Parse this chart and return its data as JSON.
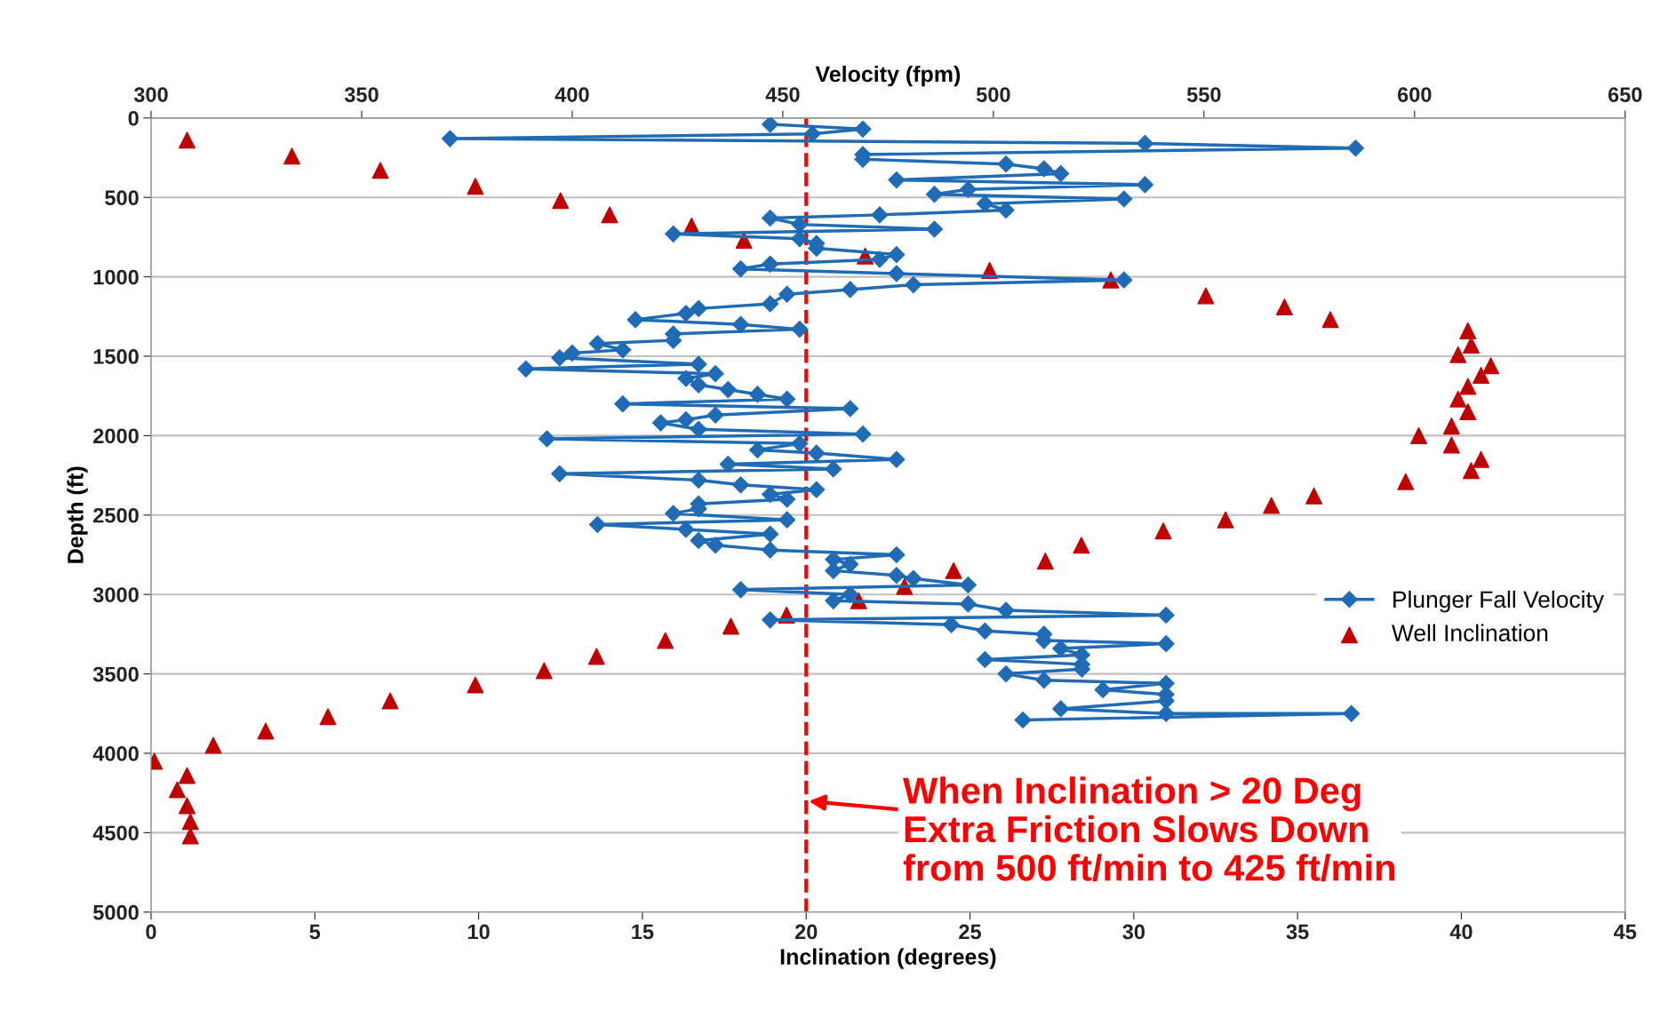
{
  "chart_data": {
    "type": "line",
    "xlabel": "Inclination (degrees)",
    "x2label": "Velocity (fpm)",
    "ylabel": "Depth (ft)",
    "xlim": [
      0,
      45
    ],
    "xticks": [
      0,
      5,
      10,
      15,
      20,
      25,
      30,
      35,
      40,
      45
    ],
    "x2lim": [
      300,
      650
    ],
    "x2ticks": [
      300,
      350,
      400,
      450,
      500,
      550,
      600,
      650
    ],
    "ylim": [
      5000,
      0
    ],
    "yticks": [
      0,
      500,
      1000,
      1500,
      2000,
      2500,
      3000,
      3500,
      4000,
      4500,
      5000
    ],
    "grid": "y",
    "legend": "right",
    "series": [
      {
        "name": "Plunger Fall Velocity",
        "axis": "x2",
        "marker": "diamond",
        "line_style": "solid",
        "color": "#1f6bb5",
        "x": [
          447,
          469,
          457,
          371,
          536,
          586,
          469,
          469,
          503,
          512,
          516,
          477,
          536,
          494,
          486,
          531,
          498,
          503,
          473,
          447,
          454,
          486,
          424,
          454,
          458,
          458,
          477,
          473,
          447,
          440,
          477,
          531,
          481,
          466,
          451,
          447,
          430,
          427,
          415,
          440,
          454,
          424,
          424,
          406,
          412,
          400,
          397,
          430,
          389,
          434,
          427,
          430,
          437,
          444,
          451,
          412,
          466,
          434,
          427,
          421,
          430,
          469,
          394,
          454,
          444,
          458,
          477,
          437,
          462,
          397,
          430,
          440,
          458,
          447,
          451,
          430,
          430,
          424,
          451,
          406,
          427,
          447,
          430,
          434,
          447,
          477,
          462,
          466,
          462,
          477,
          481,
          494,
          440,
          466,
          462,
          494,
          503,
          541,
          447,
          490,
          498,
          512,
          512,
          541,
          516,
          521,
          498,
          521,
          521,
          503,
          512,
          541,
          526,
          541,
          541,
          516,
          541,
          585,
          507
        ],
        "values": [
          40,
          70,
          100,
          130,
          160,
          190,
          230,
          260,
          290,
          320,
          350,
          390,
          420,
          450,
          480,
          510,
          540,
          580,
          610,
          630,
          670,
          700,
          730,
          760,
          790,
          820,
          860,
          890,
          920,
          950,
          980,
          1020,
          1050,
          1080,
          1110,
          1170,
          1200,
          1230,
          1270,
          1300,
          1330,
          1360,
          1400,
          1420,
          1460,
          1480,
          1510,
          1550,
          1580,
          1610,
          1640,
          1680,
          1710,
          1740,
          1770,
          1800,
          1830,
          1870,
          1900,
          1920,
          1960,
          1990,
          2020,
          2050,
          2090,
          2110,
          2150,
          2180,
          2210,
          2240,
          2280,
          2310,
          2340,
          2370,
          2400,
          2430,
          2460,
          2490,
          2530,
          2560,
          2590,
          2620,
          2660,
          2690,
          2720,
          2750,
          2780,
          2810,
          2850,
          2880,
          2900,
          2940,
          2970,
          3000,
          3040,
          3060,
          3100,
          3130,
          3160,
          3190,
          3230,
          3250,
          3290,
          3310,
          3340,
          3380,
          3410,
          3440,
          3470,
          3500,
          3540,
          3560,
          3600,
          3630,
          3670,
          3720,
          3750,
          3750,
          3790
        ]
      },
      {
        "name": "Well Inclination",
        "type": "scatter",
        "marker": "triangle",
        "color": "#c00000",
        "x": [
          1.1,
          4.3,
          7.0,
          9.9,
          12.5,
          14.0,
          16.5,
          18.1,
          21.8,
          25.6,
          29.3,
          32.2,
          34.6,
          36.0,
          40.2,
          40.3,
          39.9,
          40.9,
          40.6,
          40.2,
          39.9,
          40.2,
          39.7,
          38.7,
          39.7,
          40.6,
          40.3,
          38.3,
          35.5,
          34.2,
          32.8,
          30.9,
          28.4,
          27.3,
          24.5,
          23.0,
          21.6,
          19.4,
          17.7,
          15.7,
          13.6,
          12.0,
          9.9,
          7.3,
          5.4,
          3.5,
          1.9,
          0.1,
          1.1,
          0.8,
          1.1,
          1.2,
          1.2
        ],
        "values": [
          140,
          240,
          330,
          430,
          520,
          610,
          680,
          770,
          870,
          960,
          1020,
          1120,
          1190,
          1270,
          1340,
          1430,
          1490,
          1560,
          1620,
          1690,
          1770,
          1850,
          1940,
          2000,
          2060,
          2150,
          2220,
          2290,
          2380,
          2440,
          2530,
          2600,
          2690,
          2790,
          2850,
          2950,
          3040,
          3130,
          3200,
          3290,
          3390,
          3480,
          3570,
          3670,
          3770,
          3860,
          3950,
          4050,
          4140,
          4230,
          4330,
          4430,
          4520
        ]
      }
    ],
    "ref_lines": [
      {
        "axis": "x",
        "value": 20,
        "color": "#ff0000",
        "line_style": "dashed"
      }
    ],
    "annotations": [
      {
        "text": "When Inclination > 20 Deg\nExtra Friction Slows Down\nfrom 500 ft/min to 425 ft/min",
        "x": 20,
        "y": 4300
      }
    ]
  }
}
